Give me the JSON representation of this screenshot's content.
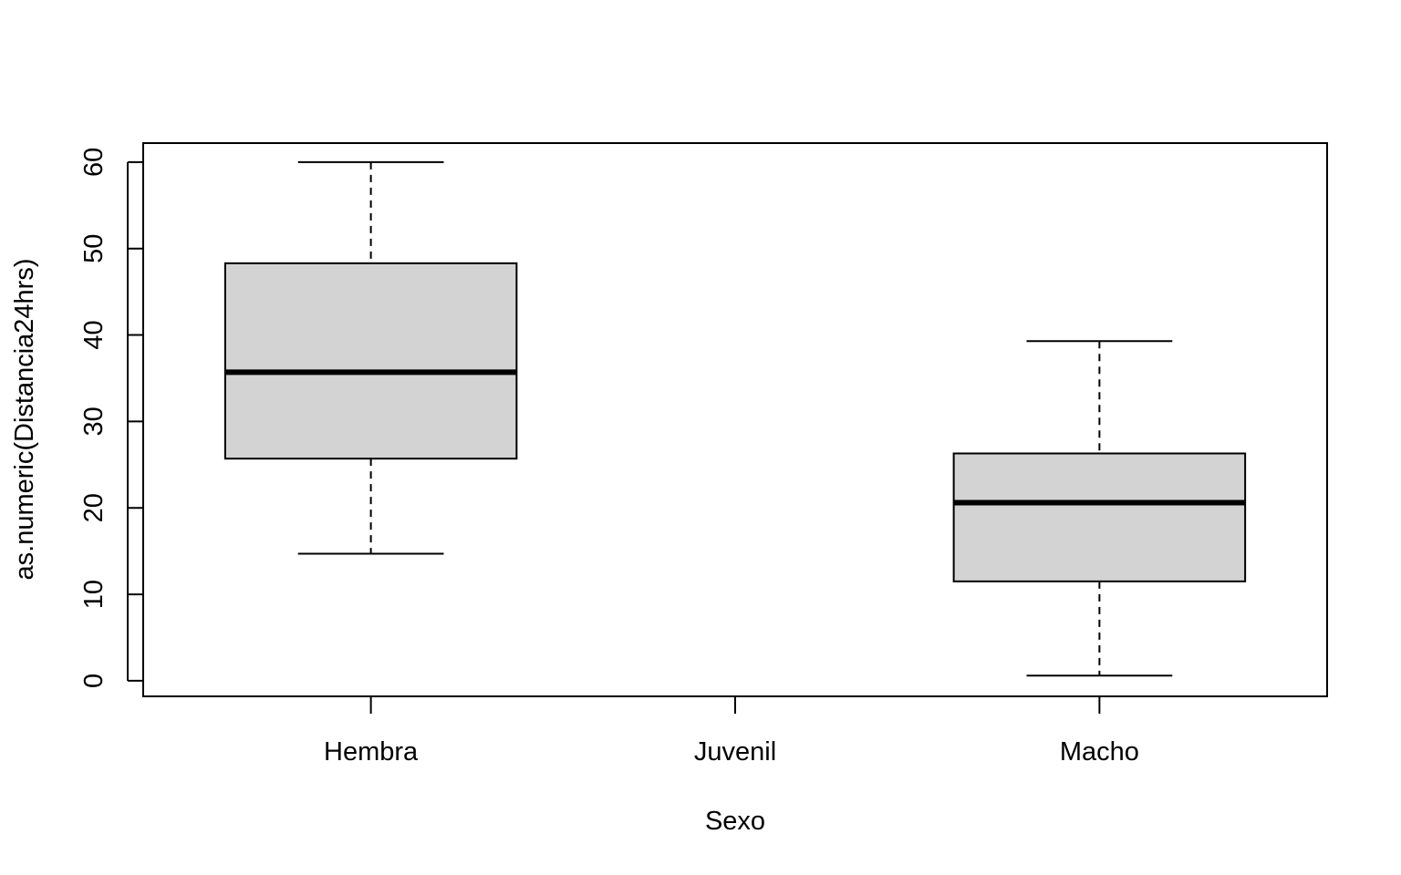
{
  "chart_data": {
    "type": "box",
    "title": "",
    "xlabel": "Sexo",
    "ylabel": "as.numeric(Distancia24hrs)",
    "categories": [
      "Hembra",
      "Juvenil",
      "Macho"
    ],
    "ylim": [
      -1.8,
      62.2
    ],
    "y_ticks": [
      0,
      10,
      20,
      30,
      40,
      50,
      60
    ],
    "y_tick_labels": [
      "0",
      "10",
      "20",
      "30",
      "40",
      "50",
      "60"
    ],
    "boxes": [
      {
        "category": "Hembra",
        "min": 14.7,
        "q1": 25.7,
        "median": 35.7,
        "q3": 48.3,
        "max": 60.0
      },
      {
        "category": "Juvenil",
        "empty": true
      },
      {
        "category": "Macho",
        "min": 0.6,
        "q1": 11.5,
        "median": 20.6,
        "q3": 26.3,
        "max": 39.3
      }
    ],
    "box_fill": "#d3d3d3",
    "line_color": "#000000",
    "grid": false,
    "legend": "none"
  }
}
